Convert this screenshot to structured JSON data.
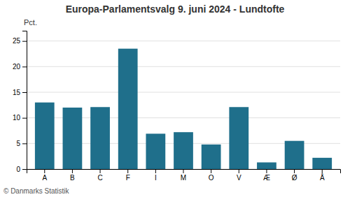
{
  "chart_data": {
    "type": "bar",
    "title": "Europa-Parlamentsvalg 9. juni 2024 - Lundtofte",
    "ylabel": "Pct.",
    "annotations": [
      "© Danmarks Statistik"
    ],
    "categories": [
      "A",
      "B",
      "C",
      "F",
      "I",
      "M",
      "O",
      "V",
      "Æ",
      "Ø",
      "Å"
    ],
    "values": [
      13.0,
      12.0,
      12.1,
      23.5,
      6.9,
      7.2,
      4.8,
      12.1,
      1.3,
      5.5,
      2.2
    ],
    "color": "#1f6f8b",
    "ylim": [
      0,
      27
    ],
    "yticks": [
      0,
      5,
      10,
      15,
      20,
      25
    ],
    "grid": true
  }
}
